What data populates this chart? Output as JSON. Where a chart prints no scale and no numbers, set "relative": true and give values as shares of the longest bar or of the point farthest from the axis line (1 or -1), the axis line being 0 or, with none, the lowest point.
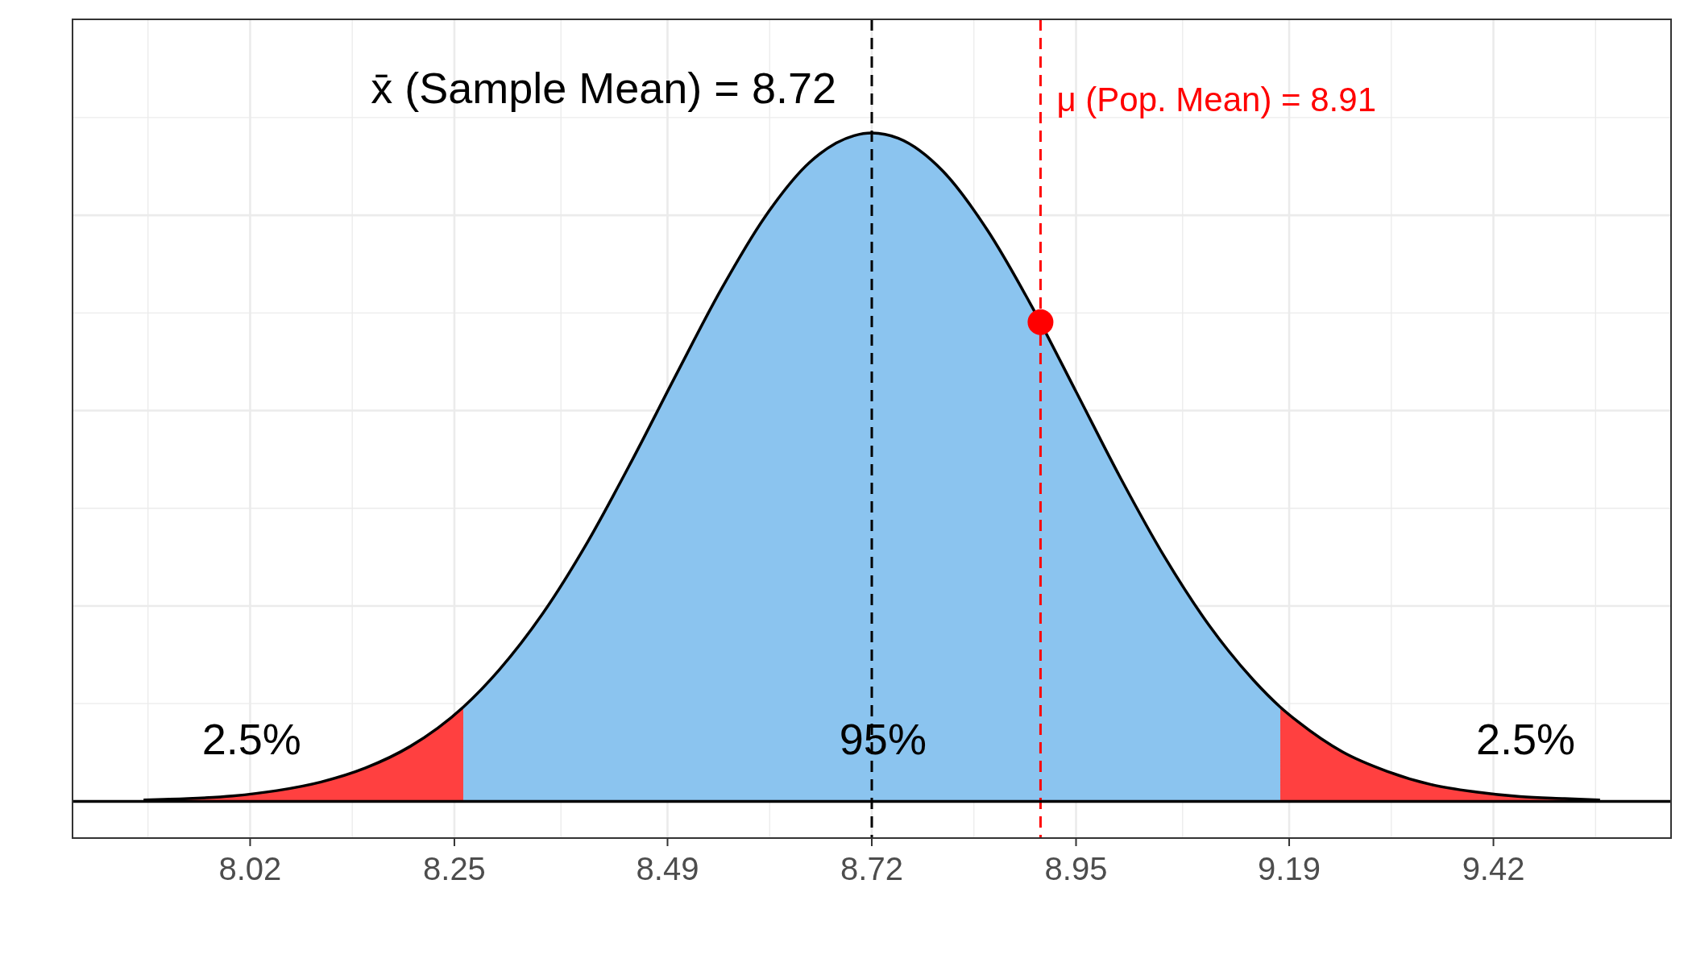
{
  "chart_data": {
    "type": "area",
    "relative": true,
    "grid": true,
    "xlim": [
      7.82,
      9.62
    ],
    "xticks": [
      8.02,
      8.25,
      8.49,
      8.72,
      8.95,
      9.19,
      9.42
    ],
    "series": [
      {
        "color": "#ff4040",
        "x": [
          7.9,
          7.95,
          8.0,
          8.05,
          8.1,
          8.15,
          8.2,
          8.26
        ],
        "values": [
          0.002,
          0.004,
          0.008,
          0.016,
          0.029,
          0.05,
          0.082,
          0.141
        ]
      },
      {
        "color": "#8bc4ef",
        "x": [
          8.26,
          8.3,
          8.35,
          8.4,
          8.45,
          8.5,
          8.55,
          8.6,
          8.65,
          8.7,
          8.72,
          8.75,
          8.8,
          8.85,
          8.9,
          8.95,
          9.0,
          9.05,
          9.1,
          9.15,
          9.18
        ],
        "values": [
          0.141,
          0.196,
          0.282,
          0.388,
          0.51,
          0.639,
          0.765,
          0.875,
          0.956,
          0.996,
          1,
          0.992,
          0.943,
          0.855,
          0.741,
          0.613,
          0.484,
          0.365,
          0.263,
          0.181,
          0.141
        ]
      },
      {
        "color": "#ff4040",
        "x": [
          9.18,
          9.2,
          9.25,
          9.3,
          9.35,
          9.4,
          9.45,
          9.5,
          9.54
        ],
        "values": [
          0.141,
          0.119,
          0.074,
          0.045,
          0.025,
          0.014,
          0.007,
          0.004,
          0.002
        ]
      },
      {
        "type": "line",
        "color": "#000000",
        "x": [
          7.9,
          7.95,
          8.0,
          8.05,
          8.1,
          8.15,
          8.2,
          8.26,
          8.3,
          8.35,
          8.4,
          8.45,
          8.5,
          8.55,
          8.6,
          8.65,
          8.7,
          8.72,
          8.75,
          8.8,
          8.85,
          8.9,
          8.95,
          9.0,
          9.05,
          9.1,
          9.15,
          9.18,
          9.2,
          9.25,
          9.3,
          9.35,
          9.4,
          9.45,
          9.5,
          9.54
        ],
        "values": [
          0.002,
          0.004,
          0.008,
          0.016,
          0.029,
          0.05,
          0.082,
          0.141,
          0.196,
          0.282,
          0.388,
          0.51,
          0.639,
          0.765,
          0.875,
          0.956,
          0.996,
          1,
          0.992,
          0.943,
          0.855,
          0.741,
          0.613,
          0.484,
          0.365,
          0.263,
          0.181,
          0.141,
          0.119,
          0.074,
          0.045,
          0.025,
          0.014,
          0.007,
          0.004,
          0.002
        ]
      },
      {
        "type": "scatter",
        "color": "#ff0000",
        "marker": "circle",
        "x": [
          8.91
        ],
        "values": [
          0.717
        ]
      }
    ],
    "ref_lines": [
      {
        "axis": "x",
        "value": 8.72,
        "label": "x̄ (Sample Mean) = 8.72",
        "color": "#000000",
        "line_style": "dashed"
      },
      {
        "axis": "x",
        "value": 8.91,
        "label": "μ (Pop. Mean) = 8.91",
        "color": "#ff0000",
        "line_style": "dashed"
      }
    ],
    "annotations": [
      "2.5%",
      "95%",
      "2.5%"
    ]
  }
}
